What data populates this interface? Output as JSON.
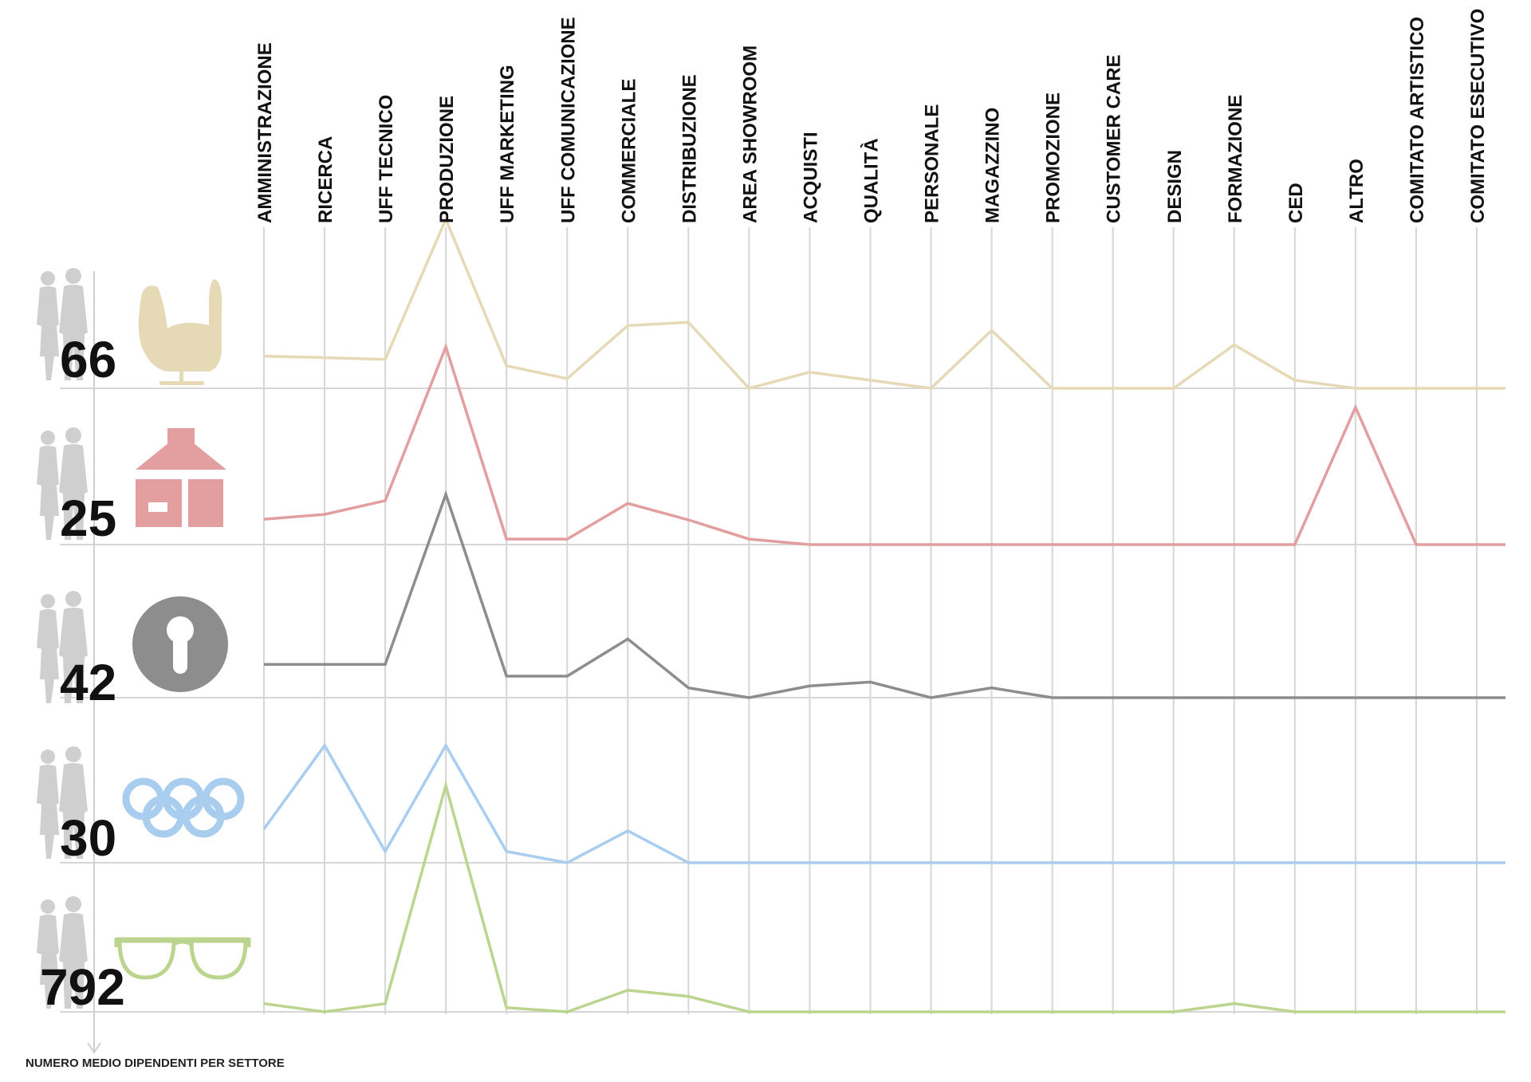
{
  "chart_data": {
    "type": "line",
    "categories": [
      "AMMINISTRAZIONE",
      "RICERCA",
      "UFF TECNICO",
      "PRODUZIONE",
      "UFF MARKETING",
      "UFF COMUNICAZIONE",
      "COMMERCIALE",
      "DISTRIBUZIONE",
      "AREA SHOWROOM",
      "ACQUISTI",
      "QUALITÀ",
      "PERSONALE",
      "MAGAZZINO",
      "PROMOZIONE",
      "CUSTOMER CARE",
      "DESIGN",
      "FORMAZIONE",
      "CED",
      "ALTRO",
      "COMITATO ARTISTICO",
      "COMITATO ESECUTIVO"
    ],
    "axis_caption": "NUMERO MEDIO DIPENDENTI PER SETTORE",
    "grid": true,
    "series": [
      {
        "total": "66",
        "icon": "armchair-icon",
        "color": "#e6d9b6",
        "values": [
          20,
          19,
          18,
          105,
          14,
          6,
          39,
          41,
          0,
          10,
          5,
          0,
          36,
          0,
          0,
          0,
          27,
          5,
          0,
          0,
          0
        ]
      },
      {
        "total": "25",
        "icon": "house-icon",
        "color": "#e39e9f",
        "values": [
          4.6,
          5.5,
          8,
          36,
          1,
          1,
          7.5,
          4.5,
          1,
          0,
          0,
          0,
          0,
          0,
          0,
          0,
          0,
          0,
          25,
          0,
          0
        ]
      },
      {
        "total": "42",
        "icon": "keyhole-icon",
        "color": "#8d8d8d",
        "values": [
          8.5,
          8.5,
          8.5,
          52,
          5.5,
          5.5,
          15,
          2.5,
          0,
          3,
          4,
          0,
          2.5,
          0,
          0,
          0,
          0,
          0,
          0,
          0,
          0
        ]
      },
      {
        "total": "30",
        "icon": "olympic-rings-icon",
        "color": "#a8cdee",
        "values": [
          3.6,
          12.5,
          1.2,
          12.5,
          1.2,
          0,
          3.4,
          0,
          0,
          0,
          0,
          0,
          0,
          0,
          0,
          0,
          0,
          0,
          0,
          0,
          0
        ]
      },
      {
        "total": "792",
        "icon": "glasses-icon",
        "color": "#bcd58e",
        "values": [
          40,
          0,
          40,
          1100,
          20,
          0,
          105,
          75,
          0,
          0,
          0,
          0,
          0,
          0,
          0,
          0,
          40,
          0,
          0,
          0,
          0
        ]
      }
    ]
  }
}
